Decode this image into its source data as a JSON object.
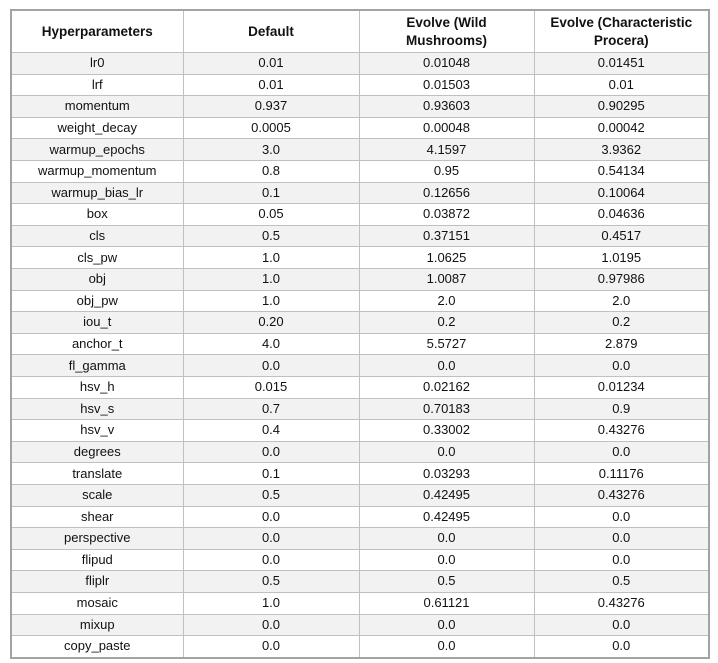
{
  "colors": {
    "page_background": "#ffffff",
    "stripe_row": "#f2f2f2",
    "inner_border": "#c0c0c0",
    "outer_border": "#a3a3a3",
    "text": "#111111"
  },
  "chart_data": {
    "type": "table",
    "columns": [
      "Hyperparameters",
      "Default",
      "Evolve (Wild\nMushrooms)",
      "Evolve (Characteristic\nProcera)"
    ],
    "rows": [
      [
        "lr0",
        "0.01",
        "0.01048",
        "0.01451"
      ],
      [
        "lrf",
        "0.01",
        "0.01503",
        "0.01"
      ],
      [
        "momentum",
        "0.937",
        "0.93603",
        "0.90295"
      ],
      [
        "weight_decay",
        "0.0005",
        "0.00048",
        "0.00042"
      ],
      [
        "warmup_epochs",
        "3.0",
        "4.1597",
        "3.9362"
      ],
      [
        "warmup_momentum",
        "0.8",
        "0.95",
        "0.54134"
      ],
      [
        "warmup_bias_lr",
        "0.1",
        "0.12656",
        "0.10064"
      ],
      [
        "box",
        "0.05",
        "0.03872",
        "0.04636"
      ],
      [
        "cls",
        "0.5",
        "0.37151",
        "0.4517"
      ],
      [
        "cls_pw",
        "1.0",
        "1.0625",
        "1.0195"
      ],
      [
        "obj",
        "1.0",
        "1.0087",
        "0.97986"
      ],
      [
        "obj_pw",
        "1.0",
        "2.0",
        "2.0"
      ],
      [
        "iou_t",
        "0.20",
        "0.2",
        "0.2"
      ],
      [
        "anchor_t",
        "4.0",
        "5.5727",
        "2.879"
      ],
      [
        "fl_gamma",
        "0.0",
        "0.0",
        "0.0"
      ],
      [
        "hsv_h",
        "0.015",
        "0.02162",
        "0.01234"
      ],
      [
        "hsv_s",
        "0.7",
        "0.70183",
        "0.9"
      ],
      [
        "hsv_v",
        "0.4",
        "0.33002",
        "0.43276"
      ],
      [
        "degrees",
        "0.0",
        "0.0",
        "0.0"
      ],
      [
        "translate",
        "0.1",
        "0.03293",
        "0.11176"
      ],
      [
        "scale",
        "0.5",
        "0.42495",
        "0.43276"
      ],
      [
        "shear",
        "0.0",
        "0.42495",
        "0.0"
      ],
      [
        "perspective",
        "0.0",
        "0.0",
        "0.0"
      ],
      [
        "flipud",
        "0.0",
        "0.0",
        "0.0"
      ],
      [
        "fliplr",
        "0.5",
        "0.5",
        "0.5"
      ],
      [
        "mosaic",
        "1.0",
        "0.61121",
        "0.43276"
      ],
      [
        "mixup",
        "0.0",
        "0.0",
        "0.0"
      ],
      [
        "copy_paste",
        "0.0",
        "0.0",
        "0.0"
      ]
    ]
  }
}
